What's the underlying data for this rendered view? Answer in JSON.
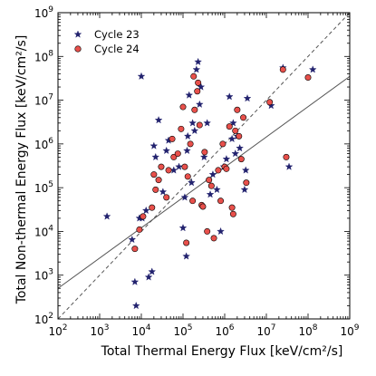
{
  "chart_data": {
    "type": "scatter",
    "xlabel": "Total Thermal Energy Flux [keV/cm²/s]",
    "ylabel": "Total Non-thermal Energy Flux [keV/cm²/s]",
    "xscale": "log",
    "yscale": "log",
    "xlim": [
      100,
      1000000000
    ],
    "ylim": [
      100,
      1000000000
    ],
    "x_ticks": [
      {
        "value": 100,
        "mantissa": "10",
        "exp": "2"
      },
      {
        "value": 1000,
        "mantissa": "10",
        "exp": "3"
      },
      {
        "value": 10000,
        "mantissa": "10",
        "exp": "4"
      },
      {
        "value": 100000,
        "mantissa": "10",
        "exp": "5"
      },
      {
        "value": 1000000,
        "mantissa": "10",
        "exp": "6"
      },
      {
        "value": 10000000,
        "mantissa": "10",
        "exp": "7"
      },
      {
        "value": 100000000,
        "mantissa": "10",
        "exp": "8"
      },
      {
        "value": 1000000000,
        "mantissa": "10",
        "exp": "9"
      }
    ],
    "y_ticks": [
      {
        "value": 100,
        "mantissa": "10",
        "exp": "2"
      },
      {
        "value": 1000,
        "mantissa": "10",
        "exp": "3"
      },
      {
        "value": 10000,
        "mantissa": "10",
        "exp": "4"
      },
      {
        "value": 100000,
        "mantissa": "10",
        "exp": "5"
      },
      {
        "value": 1000000,
        "mantissa": "10",
        "exp": "6"
      },
      {
        "value": 10000000,
        "mantissa": "10",
        "exp": "7"
      },
      {
        "value": 100000000,
        "mantissa": "10",
        "exp": "8"
      },
      {
        "value": 1000000000,
        "mantissa": "10",
        "exp": "9"
      }
    ],
    "grid": false,
    "legend_position": "top-left",
    "series": [
      {
        "name": "Cycle 23",
        "marker": "star",
        "color": "#22226e",
        "points": [
          [
            1500,
            22000
          ],
          [
            6000,
            6500
          ],
          [
            7000,
            700
          ],
          [
            7500,
            200
          ],
          [
            9000,
            20000
          ],
          [
            10000,
            35000000
          ],
          [
            10500,
            20000
          ],
          [
            13000,
            30000
          ],
          [
            15000,
            900
          ],
          [
            18000,
            1200
          ],
          [
            20000,
            900000
          ],
          [
            22000,
            500000
          ],
          [
            26000,
            3500000
          ],
          [
            33000,
            80000
          ],
          [
            40000,
            700000
          ],
          [
            45000,
            1200000
          ],
          [
            60000,
            250000
          ],
          [
            80000,
            300000
          ],
          [
            100000,
            12000
          ],
          [
            110000,
            60000
          ],
          [
            120000,
            2700
          ],
          [
            125000,
            700000
          ],
          [
            130000,
            1500000
          ],
          [
            140000,
            13000000
          ],
          [
            160000,
            130000
          ],
          [
            170000,
            3000000
          ],
          [
            190000,
            2000000
          ],
          [
            210000,
            50000000
          ],
          [
            230000,
            75000000
          ],
          [
            250000,
            8000000
          ],
          [
            270000,
            20000000
          ],
          [
            320000,
            500000
          ],
          [
            380000,
            3000000
          ],
          [
            450000,
            70000
          ],
          [
            520000,
            200000
          ],
          [
            650000,
            90000
          ],
          [
            800000,
            10000
          ],
          [
            950000,
            300000
          ],
          [
            1100000,
            450000
          ],
          [
            1300000,
            12000000
          ],
          [
            1500000,
            1300000
          ],
          [
            1600000,
            3000000
          ],
          [
            1800000,
            600000
          ],
          [
            2000000,
            1500000
          ],
          [
            2300000,
            800000
          ],
          [
            3000000,
            90000
          ],
          [
            3200000,
            250000
          ],
          [
            3500000,
            11000000
          ],
          [
            13000000,
            7500000
          ],
          [
            25000000,
            55000000
          ],
          [
            35000000,
            300000
          ],
          [
            130000000,
            50000000
          ]
        ]
      },
      {
        "name": "Cycle 24",
        "marker": "circle",
        "color": "#e8504b",
        "points": [
          [
            7000,
            4000
          ],
          [
            9000,
            11000
          ],
          [
            11000,
            22000
          ],
          [
            18000,
            35000
          ],
          [
            20000,
            200000
          ],
          [
            22000,
            90000
          ],
          [
            26000,
            150000
          ],
          [
            30000,
            300000
          ],
          [
            40000,
            60000
          ],
          [
            45000,
            250000
          ],
          [
            55000,
            1300000
          ],
          [
            60000,
            500000
          ],
          [
            75000,
            600000
          ],
          [
            90000,
            2200000
          ],
          [
            100000,
            7000000
          ],
          [
            110000,
            300000
          ],
          [
            120000,
            5500
          ],
          [
            130000,
            180000
          ],
          [
            150000,
            1000000
          ],
          [
            170000,
            50000
          ],
          [
            180000,
            35000000
          ],
          [
            190000,
            6000000
          ],
          [
            220000,
            16000000
          ],
          [
            230000,
            25000000
          ],
          [
            250000,
            2700000
          ],
          [
            280000,
            40000
          ],
          [
            300000,
            37000
          ],
          [
            330000,
            650000
          ],
          [
            380000,
            10000
          ],
          [
            420000,
            150000
          ],
          [
            480000,
            110000
          ],
          [
            550000,
            7000
          ],
          [
            700000,
            250000
          ],
          [
            800000,
            50000
          ],
          [
            900000,
            1000000
          ],
          [
            1000000,
            300000
          ],
          [
            1100000,
            270000
          ],
          [
            1300000,
            2500000
          ],
          [
            1500000,
            35000
          ],
          [
            1600000,
            25000
          ],
          [
            1800000,
            2000000
          ],
          [
            2000000,
            6000000
          ],
          [
            2200000,
            1500000
          ],
          [
            2500000,
            450000
          ],
          [
            2800000,
            4000000
          ],
          [
            3300000,
            130000
          ],
          [
            12000000,
            9000000
          ],
          [
            25000000,
            50000000
          ],
          [
            30000000,
            500000
          ],
          [
            100000000,
            33000000
          ]
        ]
      }
    ],
    "reference_lines": [
      {
        "name": "fit",
        "style": "solid",
        "color": "#555555",
        "x": [
          100,
          1000000000
        ],
        "y": [
          500,
          35000000
        ]
      },
      {
        "name": "identity",
        "style": "dashed",
        "color": "#555555",
        "x": [
          100,
          1000000000
        ],
        "y": [
          100,
          1000000000
        ]
      }
    ]
  }
}
